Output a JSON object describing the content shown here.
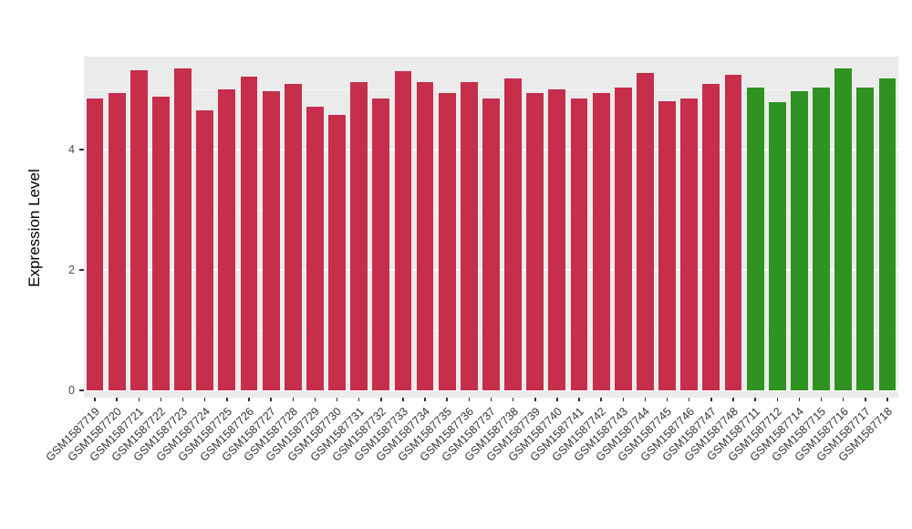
{
  "chart_data": {
    "type": "bar",
    "title": "",
    "xlabel": "",
    "ylabel": "Expression Level",
    "ylim": [
      0,
      5.55
    ],
    "yticks": [
      0,
      2,
      4
    ],
    "yticks_minor": [
      1,
      3,
      5
    ],
    "grid": true,
    "legend": "none",
    "panel_bg": "#EBEBEB",
    "grid_major_color": "#FFFFFF",
    "grid_minor_color": "rgba(255,255,255,0.55)",
    "series": [
      {
        "name": "group-red",
        "color": "#C62E4C",
        "categories": [
          "GSM1587719",
          "GSM1587720",
          "GSM1587721",
          "GSM1587722",
          "GSM1587723",
          "GSM1587724",
          "GSM1587725",
          "GSM1587726",
          "GSM1587727",
          "GSM1587728",
          "GSM1587729",
          "GSM1587730",
          "GSM1587731",
          "GSM1587732",
          "GSM1587733",
          "GSM1587734",
          "GSM1587735",
          "GSM1587736",
          "GSM1587737",
          "GSM1587738",
          "GSM1587739",
          "GSM1587740",
          "GSM1587741",
          "GSM1587742",
          "GSM1587743",
          "GSM1587744",
          "GSM1587745",
          "GSM1587746",
          "GSM1587747",
          "GSM1587748"
        ],
        "values": [
          4.85,
          4.94,
          5.33,
          4.89,
          5.36,
          4.65,
          5.01,
          5.21,
          4.97,
          5.09,
          4.71,
          4.58,
          5.12,
          4.85,
          5.3,
          5.13,
          4.94,
          5.12,
          4.85,
          5.18,
          4.94,
          5.01,
          4.86,
          4.95,
          5.04,
          5.27,
          4.8,
          4.86,
          5.1,
          5.24
        ]
      },
      {
        "name": "group-green",
        "color": "#2E9320",
        "categories": [
          "GSM1587711",
          "GSM1587712",
          "GSM1587714",
          "GSM1587715",
          "GSM1587716",
          "GSM1587717",
          "GSM1587718"
        ],
        "values": [
          5.03,
          4.79,
          4.98,
          5.04,
          5.36,
          5.03,
          5.19
        ]
      }
    ]
  }
}
